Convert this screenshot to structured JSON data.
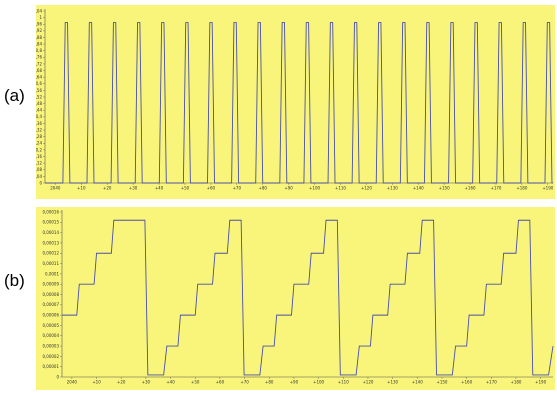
{
  "panels": [
    {
      "label": "(a)"
    },
    {
      "label": "(b)"
    }
  ],
  "colors": {
    "background": "#f8f57a",
    "line": "#4a4fa8",
    "axis": "#555555"
  },
  "chart_data": [
    {
      "type": "line",
      "title": "",
      "xlabel": "",
      "ylabel": "",
      "xlim": [
        -4,
        192
      ],
      "ylim": [
        0,
        1.04
      ],
      "xticks": [
        0,
        10,
        20,
        30,
        40,
        50,
        60,
        70,
        80,
        90,
        100,
        110,
        120,
        130,
        140,
        150,
        160,
        170,
        180,
        190
      ],
      "xtick_labels": [
        "2040",
        "+10",
        "+20",
        "+30",
        "+40",
        "+50",
        "+60",
        "+70",
        "+80",
        "+90",
        "+100",
        "+110",
        "+120",
        "+130",
        "+140",
        "+150",
        "+160",
        "+170",
        "+180",
        "+190"
      ],
      "yticks": [
        0,
        0.04,
        0.08,
        0.12,
        0.16,
        0.2,
        0.24,
        0.28,
        0.32,
        0.36,
        0.4,
        0.44,
        0.48,
        0.52,
        0.56,
        0.6,
        0.64,
        0.68,
        0.72,
        0.76,
        0.8,
        0.84,
        0.88,
        0.92,
        0.96,
        1,
        1.04
      ],
      "ytick_labels": [
        "0",
        "0,04",
        "0,08",
        "0,12",
        "0,16",
        "0,2",
        "0,24",
        "0,28",
        "0,32",
        "0,36",
        "0,4",
        "0,44",
        "0,48",
        "0,52",
        "0,56",
        "0,6",
        "0,64",
        "0,68",
        "0,72",
        "0,76",
        "0,8",
        "0,84",
        "0,88",
        "0,92",
        "0,96",
        "1",
        "1,04"
      ],
      "grid": false,
      "series": [
        {
          "x": [
            -4,
            2.9,
            3.8,
            4.7,
            5.6,
            12.2,
            13.1,
            14.0,
            14.9,
            21.5,
            22.4,
            23.3,
            24.2,
            30.8,
            31.7,
            32.6,
            33.5,
            40.1,
            41.0,
            41.9,
            42.8,
            49.4,
            50.3,
            51.2,
            52.1,
            58.7,
            59.6,
            60.5,
            61.4,
            68.0,
            68.9,
            69.8,
            70.7,
            77.3,
            78.2,
            79.1,
            80.0,
            86.6,
            87.5,
            88.4,
            89.3,
            95.9,
            96.8,
            97.7,
            98.6,
            105.2,
            106.1,
            107.0,
            107.9,
            114.5,
            115.4,
            116.3,
            117.2,
            123.8,
            124.7,
            125.6,
            126.5,
            133.1,
            134.0,
            134.9,
            135.8,
            142.4,
            143.3,
            144.2,
            145.1,
            151.7,
            152.6,
            153.5,
            154.4,
            161.0,
            161.9,
            162.8,
            163.7,
            170.3,
            171.2,
            172.1,
            173.0,
            179.6,
            180.5,
            181.4,
            182.3,
            188.9,
            189.8,
            190.7,
            191.6,
            192
          ],
          "y": [
            0,
            0,
            0.97,
            0.97,
            0,
            0,
            0.97,
            0.97,
            0,
            0,
            0.97,
            0.97,
            0,
            0,
            0.97,
            0.97,
            0,
            0,
            0.97,
            0.97,
            0,
            0,
            0.97,
            0.97,
            0,
            0,
            0.97,
            0.97,
            0,
            0,
            0.97,
            0.97,
            0,
            0,
            0.97,
            0.97,
            0,
            0,
            0.97,
            0.97,
            0,
            0,
            0.97,
            0.97,
            0,
            0,
            0.97,
            0.97,
            0,
            0,
            0.97,
            0.97,
            0,
            0,
            0.97,
            0.97,
            0,
            0,
            0.97,
            0.97,
            0,
            0,
            0.97,
            0.97,
            0,
            0,
            0.97,
            0.97,
            0,
            0,
            0.97,
            0.97,
            0,
            0,
            0.97,
            0.97,
            0,
            0,
            0.97,
            0.97,
            0,
            0,
            0.97,
            0.97,
            0,
            0
          ]
        }
      ]
    },
    {
      "type": "line",
      "title": "",
      "xlabel": "",
      "ylabel": "",
      "xlim": [
        -4,
        195
      ],
      "ylim": [
        0,
        0.00016
      ],
      "xticks": [
        0,
        10,
        20,
        30,
        40,
        50,
        60,
        70,
        80,
        90,
        100,
        110,
        120,
        130,
        140,
        150,
        160,
        170,
        180,
        190
      ],
      "xtick_labels": [
        "2040",
        "+10",
        "+20",
        "+30",
        "+40",
        "+50",
        "+60",
        "+70",
        "+80",
        "+90",
        "+100",
        "+110",
        "+120",
        "+130",
        "+140",
        "+150",
        "+160",
        "+170",
        "+180",
        "+190"
      ],
      "yticks": [
        0,
        1e-05,
        2e-05,
        3e-05,
        4e-05,
        5e-05,
        6e-05,
        7e-05,
        8e-05,
        9e-05,
        0.0001,
        0.00011,
        0.00012,
        0.00013,
        0.00014,
        0.00015,
        0.00016
      ],
      "ytick_labels": [
        "0",
        "0,00001",
        "0,00002",
        "0,00003",
        "0,00004",
        "0,00005",
        "0,00006",
        "0,00007",
        "0,00008",
        "0,00009",
        "0,0001",
        "0,00011",
        "0,00012",
        "0,00013",
        "0,00014",
        "0,00015",
        "0,00016"
      ],
      "grid": false,
      "series": [
        {
          "x": [
            -4,
            2,
            3,
            9,
            10,
            16,
            17,
            23,
            24,
            29.6,
            30.8,
            37.2,
            38.5,
            43,
            44,
            50,
            51,
            57,
            58,
            63,
            64,
            68.6,
            69.8,
            76.2,
            77.5,
            82,
            83,
            89,
            90,
            96,
            97,
            102,
            103,
            107.6,
            108.8,
            115.2,
            116.5,
            121,
            122,
            128,
            129,
            135,
            136,
            141,
            142,
            146.6,
            147.8,
            154.2,
            155.5,
            160,
            161,
            167,
            168,
            174,
            175,
            180,
            181,
            185.6,
            186.8,
            193.2,
            195
          ],
          "y": [
            6e-05,
            6e-05,
            9e-05,
            9e-05,
            0.00012,
            0.00012,
            0.000152,
            0.000152,
            0.000152,
            0.000152,
            2e-06,
            2e-06,
            3e-05,
            3e-05,
            6e-05,
            6e-05,
            9e-05,
            9e-05,
            0.00012,
            0.00012,
            0.000152,
            0.000152,
            2e-06,
            2e-06,
            3e-05,
            3e-05,
            6e-05,
            6e-05,
            9e-05,
            9e-05,
            0.00012,
            0.00012,
            0.000152,
            0.000152,
            2e-06,
            2e-06,
            3e-05,
            3e-05,
            6e-05,
            6e-05,
            9e-05,
            9e-05,
            0.00012,
            0.00012,
            0.000152,
            0.000152,
            2e-06,
            2e-06,
            3e-05,
            3e-05,
            6e-05,
            6e-05,
            9e-05,
            9e-05,
            0.00012,
            0.00012,
            0.000152,
            0.000152,
            2e-06,
            2e-06,
            3e-05
          ]
        }
      ]
    }
  ]
}
